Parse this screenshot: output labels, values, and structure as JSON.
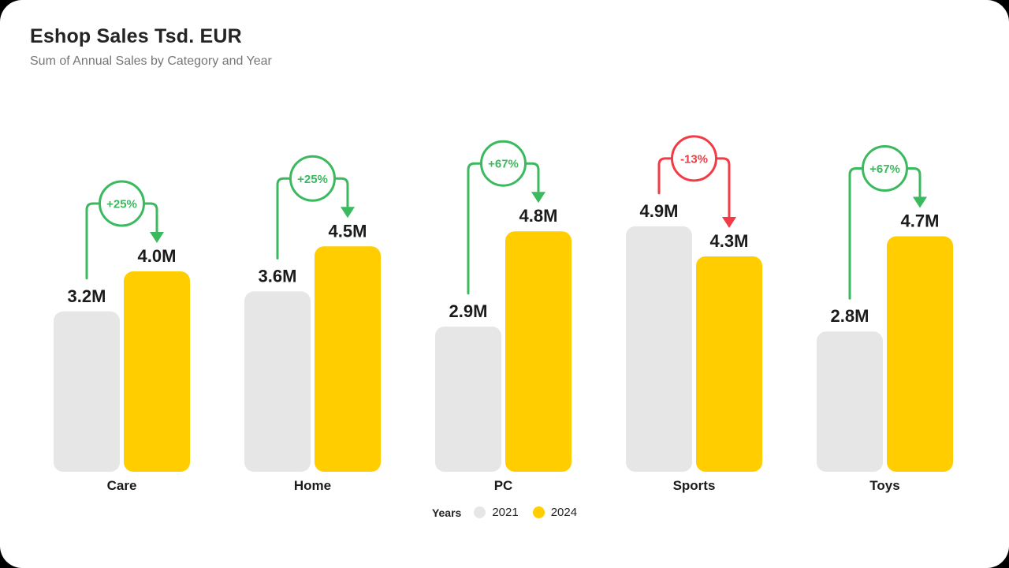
{
  "header": {
    "title": "Eshop Sales Tsd. EUR",
    "subtitle": "Sum of Annual Sales by Category and Year"
  },
  "legend": {
    "title": "Years",
    "items": [
      {
        "label": "2021",
        "color": "#e6e6e6"
      },
      {
        "label": "2024",
        "color": "#ffcd00"
      }
    ]
  },
  "colors": {
    "bar_2021": "#e6e6e6",
    "bar_2024": "#ffcd00",
    "increase": "#3bb95e",
    "decrease": "#f23b45",
    "text": "#1b1b1b",
    "subtitle_text": "#767676",
    "card_background": "#ffffff",
    "page_background": "#000000"
  },
  "chart_data": {
    "type": "bar",
    "title": "Eshop Sales Tsd. EUR",
    "subtitle": "Sum of Annual Sales by Category and Year",
    "categories": [
      "Care",
      "Home",
      "PC",
      "Sports",
      "Toys"
    ],
    "series": [
      {
        "name": "2021",
        "color": "#e6e6e6",
        "values": [
          3.2,
          3.6,
          2.9,
          4.9,
          2.8
        ],
        "labels": [
          "3.2M",
          "3.6M",
          "2.9M",
          "4.9M",
          "2.8M"
        ]
      },
      {
        "name": "2024",
        "color": "#ffcd00",
        "values": [
          4.0,
          4.5,
          4.8,
          4.3,
          4.7
        ],
        "labels": [
          "4.0M",
          "4.5M",
          "4.8M",
          "4.3M",
          "4.7M"
        ]
      }
    ],
    "changes": [
      {
        "label": "+25%",
        "direction": "up"
      },
      {
        "label": "+25%",
        "direction": "up"
      },
      {
        "label": "+67%",
        "direction": "up"
      },
      {
        "label": "-13%",
        "direction": "down"
      },
      {
        "label": "+67%",
        "direction": "up"
      }
    ],
    "ylim": [
      0,
      5
    ],
    "grid": false,
    "value_axis_visible": false,
    "legend_position": "bottom",
    "legend_title": "Years"
  }
}
